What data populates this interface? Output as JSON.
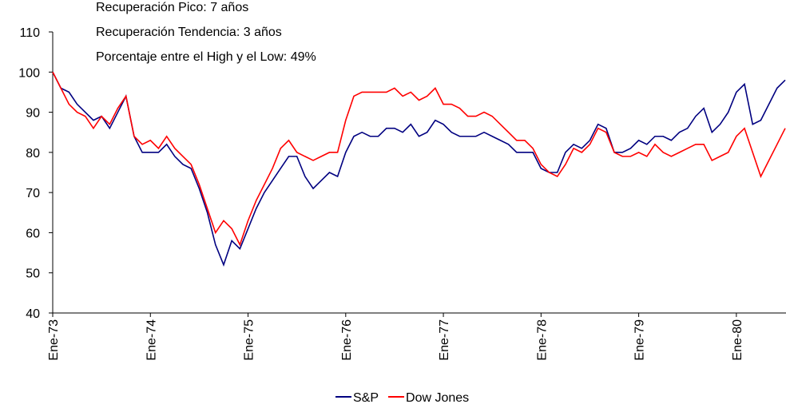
{
  "chart_data": {
    "type": "line",
    "annotations": [
      "Recuperación Pico: 7 años",
      "Recuperación Tendencia: 3 años",
      "Porcentaje entre el High y el Low: 49%"
    ],
    "categories": [
      "Ene-73",
      null,
      null,
      null,
      null,
      null,
      null,
      null,
      null,
      null,
      null,
      null,
      "Ene-74",
      null,
      null,
      null,
      null,
      null,
      null,
      null,
      null,
      null,
      null,
      null,
      "Ene-75",
      null,
      null,
      null,
      null,
      null,
      null,
      null,
      null,
      null,
      null,
      null,
      "Ene-76",
      null,
      null,
      null,
      null,
      null,
      null,
      null,
      null,
      null,
      null,
      null,
      "Ene-77",
      null,
      null,
      null,
      null,
      null,
      null,
      null,
      null,
      null,
      null,
      null,
      "Ene-78",
      null,
      null,
      null,
      null,
      null,
      null,
      null,
      null,
      null,
      null,
      null,
      "Ene-79",
      null,
      null,
      null,
      null,
      null,
      null,
      null,
      null,
      null,
      null,
      null,
      "Ene-80",
      null,
      null,
      null,
      null,
      null,
      null
    ],
    "series": [
      {
        "name": "S&P",
        "color": "#000080",
        "values": [
          100,
          96,
          95,
          92,
          90,
          88,
          89,
          86,
          90,
          94,
          84,
          80,
          80,
          80,
          82,
          79,
          77,
          76,
          71,
          65,
          57,
          52,
          58,
          56,
          61,
          66,
          70,
          73,
          76,
          79,
          79,
          74,
          71,
          73,
          75,
          74,
          80,
          84,
          85,
          84,
          84,
          86,
          86,
          85,
          87,
          84,
          85,
          88,
          87,
          85,
          84,
          84,
          84,
          85,
          84,
          83,
          82,
          80,
          80,
          80,
          76,
          75,
          75,
          80,
          82,
          81,
          83,
          87,
          86,
          80,
          80,
          81,
          83,
          82,
          84,
          84,
          83,
          85,
          86,
          89,
          91,
          85,
          87,
          90,
          95,
          97,
          87,
          88,
          92,
          96,
          98
        ]
      },
      {
        "name": "Dow Jones",
        "color": "#ff0000",
        "values": [
          100,
          96,
          92,
          90,
          89,
          86,
          89,
          87,
          91,
          94,
          84,
          82,
          83,
          81,
          84,
          81,
          79,
          77,
          72,
          66,
          60,
          63,
          61,
          57,
          63,
          68,
          72,
          76,
          81,
          83,
          80,
          79,
          78,
          79,
          80,
          80,
          88,
          94,
          95,
          95,
          95,
          95,
          96,
          94,
          95,
          93,
          94,
          96,
          92,
          92,
          91,
          89,
          89,
          90,
          89,
          87,
          85,
          83,
          83,
          81,
          77,
          75,
          74,
          77,
          81,
          80,
          82,
          86,
          85,
          80,
          79,
          79,
          80,
          79,
          82,
          80,
          79,
          80,
          81,
          82,
          82,
          78,
          79,
          80,
          84,
          86,
          80,
          74,
          78,
          82,
          86
        ]
      }
    ],
    "ylim": [
      40,
      110
    ],
    "yticks": [
      40,
      50,
      60,
      70,
      80,
      90,
      100,
      110
    ],
    "grid": false,
    "legend": "bottom"
  }
}
